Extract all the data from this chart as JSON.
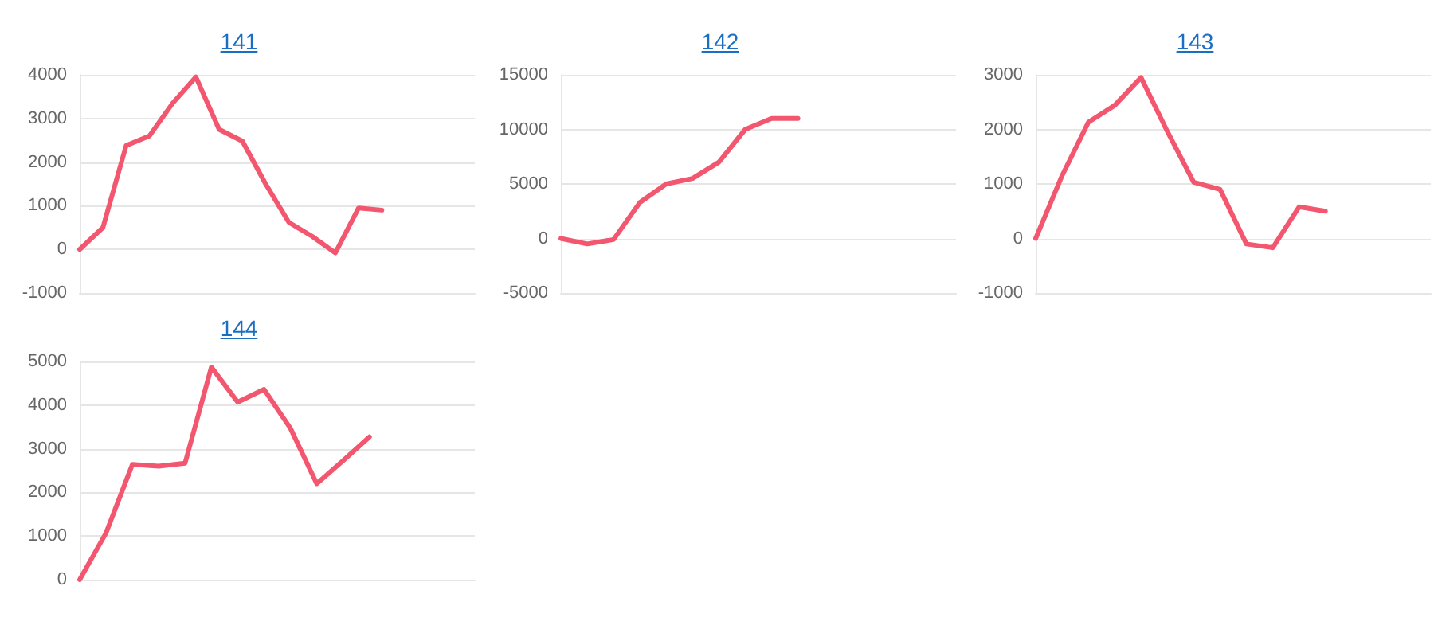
{
  "chart_data": [
    {
      "type": "line",
      "title": "141",
      "categories": [
        null,
        null,
        null,
        null,
        null,
        null,
        null,
        null,
        null,
        null,
        null,
        null,
        null,
        null,
        null,
        null,
        null,
        null
      ],
      "values": [
        0,
        500,
        2380,
        2600,
        3350,
        3950,
        2750,
        2480,
        1500,
        620,
        300,
        -80,
        950,
        900,
        null,
        null,
        null,
        null
      ],
      "color": "#f2576f",
      "ylim": [
        -1000,
        4000
      ],
      "yticks": [
        -1000,
        0,
        1000,
        2000,
        3000,
        4000
      ],
      "grid": "y",
      "marker": "none",
      "line_style": "solid",
      "tick_labels": "y"
    },
    {
      "type": "line",
      "title": "142",
      "categories": [
        null,
        null,
        null,
        null,
        null,
        null,
        null,
        null,
        null,
        null,
        null,
        null,
        null,
        null,
        null,
        null
      ],
      "values": [
        0,
        -500,
        -100,
        3300,
        5000,
        5500,
        7000,
        10000,
        11000,
        11000,
        null,
        null,
        null,
        null,
        null,
        null
      ],
      "color": "#f2576f",
      "ylim": [
        -5000,
        15000
      ],
      "yticks": [
        -5000,
        0,
        5000,
        10000,
        15000
      ],
      "grid": "y",
      "marker": "none",
      "line_style": "solid",
      "tick_labels": "y"
    },
    {
      "type": "line",
      "title": "143",
      "categories": [
        null,
        null,
        null,
        null,
        null,
        null,
        null,
        null,
        null,
        null,
        null,
        null,
        null,
        null,
        null,
        null
      ],
      "values": [
        0,
        1150,
        2130,
        2440,
        2950,
        1960,
        1030,
        900,
        -100,
        -170,
        580,
        500,
        null,
        null,
        null,
        null
      ],
      "color": "#f2576f",
      "ylim": [
        -1000,
        3000
      ],
      "yticks": [
        -1000,
        0,
        1000,
        2000,
        3000
      ],
      "grid": "y",
      "marker": "none",
      "line_style": "solid",
      "tick_labels": "y"
    },
    {
      "type": "line",
      "title": "144",
      "categories": [
        null,
        null,
        null,
        null,
        null,
        null,
        null,
        null,
        null,
        null,
        null,
        null,
        null,
        null,
        null,
        null
      ],
      "values": [
        0,
        1070,
        2640,
        2600,
        2670,
        4870,
        4070,
        4360,
        3470,
        2200,
        2730,
        3270,
        null,
        null,
        null,
        null
      ],
      "color": "#f2576f",
      "ylim": [
        0,
        5000
      ],
      "yticks": [
        0,
        1000,
        2000,
        3000,
        4000,
        5000
      ],
      "grid": "y",
      "marker": "none",
      "line_style": "solid",
      "tick_labels": "y"
    }
  ]
}
